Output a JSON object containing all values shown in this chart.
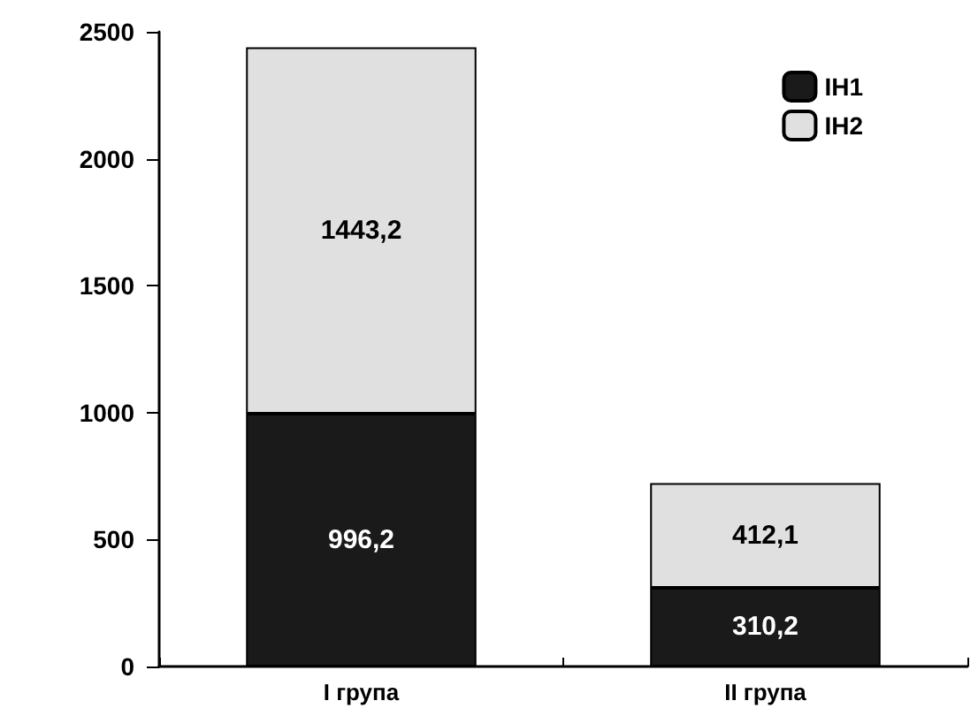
{
  "chart_data": {
    "type": "bar",
    "stacked": true,
    "categories": [
      "I група",
      "II група"
    ],
    "series": [
      {
        "name": "IH1",
        "color": "#1a1a1a",
        "values": [
          996.2,
          310.2
        ],
        "value_labels": [
          "996,2",
          "310,2"
        ]
      },
      {
        "name": "IH2",
        "color": "#e0e0e0",
        "values": [
          1443.2,
          412.1
        ],
        "value_labels": [
          "1443,2",
          "412,1"
        ]
      }
    ],
    "ylim": [
      0,
      2500
    ],
    "yticks": [
      0,
      500,
      1000,
      1500,
      2000,
      2500
    ],
    "grid": false,
    "legend": "top right"
  }
}
